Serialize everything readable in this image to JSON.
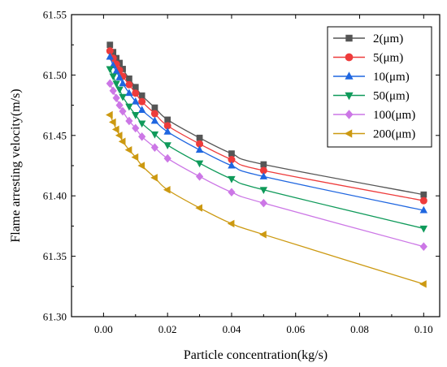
{
  "chart_data": {
    "type": "line",
    "xlabel": "Particle concentration(kg/s)",
    "ylabel": "Flame arresting velocity(m/s)",
    "xlim": [
      -0.01,
      0.105
    ],
    "ylim": [
      61.3,
      61.55
    ],
    "xticks": [
      0.0,
      0.02,
      0.04,
      0.06,
      0.08,
      0.1
    ],
    "xtick_labels": [
      "0.00",
      "0.02",
      "0.04",
      "0.06",
      "0.08",
      "0.10"
    ],
    "yticks": [
      61.3,
      61.35,
      61.4,
      61.45,
      61.5,
      61.55
    ],
    "ytick_labels": [
      "61.30",
      "61.35",
      "61.40",
      "61.45",
      "61.50",
      "61.55"
    ],
    "grid": false,
    "legend_position": "top-right",
    "x": [
      0.002,
      0.003,
      0.004,
      0.005,
      0.006,
      0.008,
      0.01,
      0.012,
      0.016,
      0.02,
      0.03,
      0.04,
      0.05,
      0.1
    ],
    "series": [
      {
        "name": "2(μm)",
        "color": "#555555",
        "marker": "square",
        "values": [
          61.525,
          61.519,
          61.514,
          61.51,
          61.505,
          61.497,
          61.49,
          61.483,
          61.473,
          61.463,
          61.448,
          61.435,
          61.426,
          61.401
        ]
      },
      {
        "name": "5(μm)",
        "color": "#ee3b3b",
        "marker": "circle",
        "values": [
          61.52,
          61.514,
          61.509,
          61.504,
          61.499,
          61.492,
          61.485,
          61.478,
          61.468,
          61.458,
          61.443,
          61.43,
          61.421,
          61.396
        ]
      },
      {
        "name": "10(μm)",
        "color": "#1f66e0",
        "marker": "triangle-up",
        "values": [
          61.515,
          61.508,
          61.503,
          61.498,
          61.493,
          61.485,
          61.478,
          61.471,
          61.462,
          61.453,
          61.438,
          61.425,
          61.416,
          61.388
        ]
      },
      {
        "name": "50(μm)",
        "color": "#0f9a5a",
        "marker": "triangle-down",
        "values": [
          61.505,
          61.499,
          61.493,
          61.488,
          61.482,
          61.474,
          61.467,
          61.46,
          61.451,
          61.442,
          61.427,
          61.414,
          61.405,
          61.373
        ]
      },
      {
        "name": "100(μm)",
        "color": "#cc77e6",
        "marker": "diamond",
        "values": [
          61.493,
          61.487,
          61.481,
          61.475,
          61.47,
          61.462,
          61.456,
          61.449,
          61.44,
          61.431,
          61.416,
          61.403,
          61.394,
          61.358
        ]
      },
      {
        "name": "200(μm)",
        "color": "#cc9911",
        "marker": "triangle-left",
        "values": [
          61.467,
          61.461,
          61.455,
          61.45,
          61.445,
          61.438,
          61.432,
          61.425,
          61.415,
          61.405,
          61.39,
          61.377,
          61.368,
          61.327
        ]
      }
    ]
  }
}
